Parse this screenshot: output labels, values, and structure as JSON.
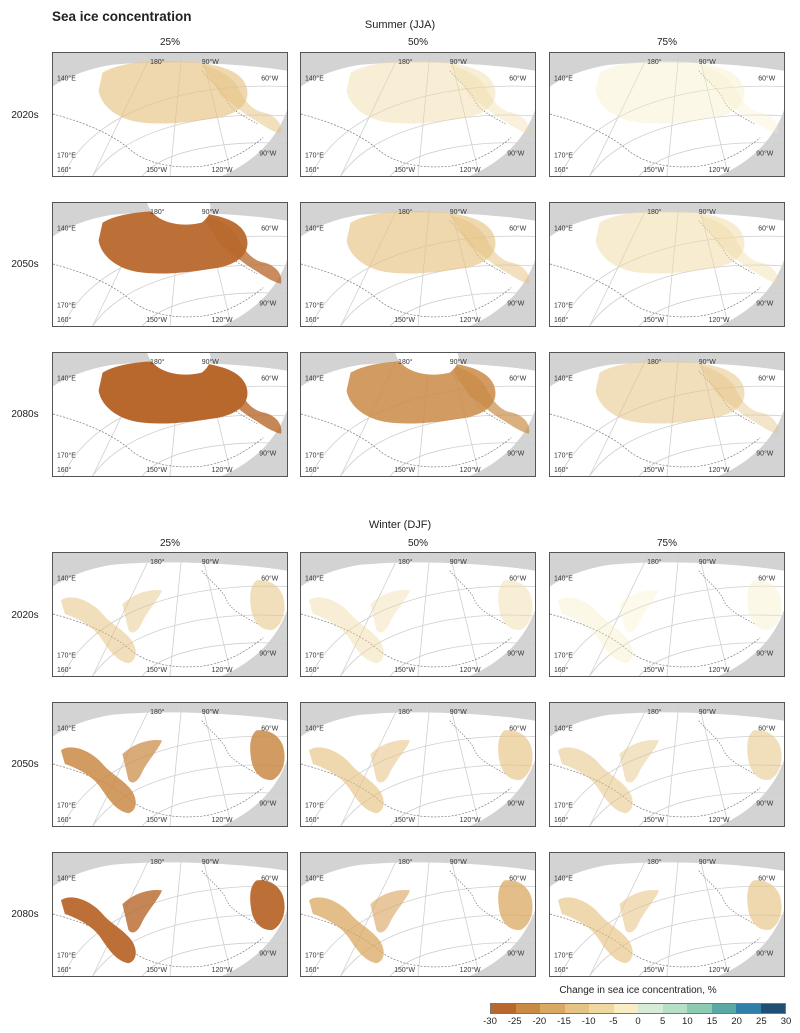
{
  "title": "Sea ice concentration",
  "sections": [
    {
      "season": "Summer (JJA)",
      "columns": [
        "25%",
        "50%",
        "75%"
      ],
      "rows": [
        {
          "period": "2020s",
          "intensity": [
            3,
            1,
            0.5
          ]
        },
        {
          "period": "2050s",
          "intensity": [
            6,
            3,
            1.5
          ]
        },
        {
          "period": "2080s",
          "intensity": [
            7,
            5,
            2
          ]
        }
      ]
    },
    {
      "season": "Winter (DJF)",
      "columns": [
        "25%",
        "50%",
        "75%"
      ],
      "rows": [
        {
          "period": "2020s",
          "intensity": [
            2,
            1,
            0.5
          ]
        },
        {
          "period": "2050s",
          "intensity": [
            5,
            3,
            2
          ]
        },
        {
          "period": "2080s",
          "intensity": [
            6,
            4,
            3
          ]
        }
      ]
    }
  ],
  "map_labels": {
    "lon_140e": "140°E",
    "lon_180": "180°",
    "lon_90w": "90°W",
    "lon_60w": "60°W",
    "lon_170e": "170°E",
    "lon_160": "160°",
    "lon_150w": "150°W",
    "lon_120w": "120°W"
  },
  "legend": {
    "title": "Change in sea ice concentration, %",
    "ticks": [
      "-30",
      "-25",
      "-20",
      "-15",
      "-10",
      "-5",
      "0",
      "5",
      "10",
      "15",
      "20",
      "25",
      "30"
    ],
    "colors": [
      "#b8682c",
      "#c98a45",
      "#d9a862",
      "#e6c283",
      "#f0d9a1",
      "#f8edc4",
      "#d6ecd6",
      "#b5dfc6",
      "#8ccbb2",
      "#5aa9a4",
      "#2f7fa8",
      "#1f4f73"
    ]
  }
}
